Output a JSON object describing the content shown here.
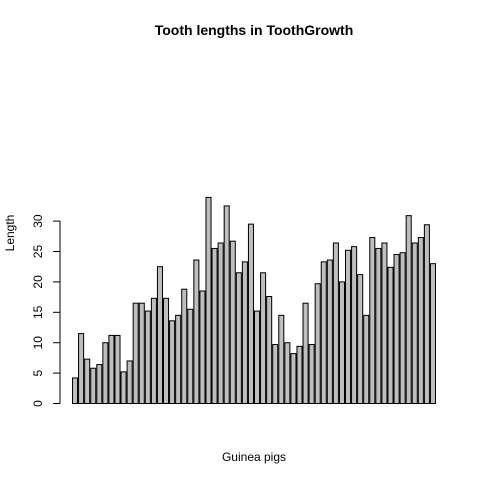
{
  "chart_data": {
    "type": "bar",
    "title": "Tooth lengths in ToothGrowth",
    "xlabel": "Guinea pigs",
    "ylabel": "Length",
    "ylim": [
      0,
      34
    ],
    "yticks": [
      "0",
      "5",
      "10",
      "15",
      "20",
      "25",
      "30"
    ],
    "grid": false,
    "values": [
      4.2,
      11.5,
      7.3,
      5.8,
      6.4,
      10.0,
      11.2,
      11.2,
      5.2,
      7.0,
      16.5,
      16.5,
      15.2,
      17.3,
      22.5,
      17.3,
      13.6,
      14.5,
      18.8,
      15.5,
      23.6,
      18.5,
      33.9,
      25.5,
      26.4,
      32.5,
      26.7,
      21.5,
      23.3,
      29.5,
      15.2,
      21.5,
      17.6,
      9.7,
      14.5,
      10.0,
      8.2,
      9.4,
      16.5,
      9.7,
      19.7,
      23.3,
      23.6,
      26.4,
      20.0,
      25.2,
      25.8,
      21.2,
      14.5,
      27.3,
      25.5,
      26.4,
      22.4,
      24.5,
      24.8,
      30.9,
      26.4,
      27.3,
      29.4,
      23.0
    ]
  }
}
